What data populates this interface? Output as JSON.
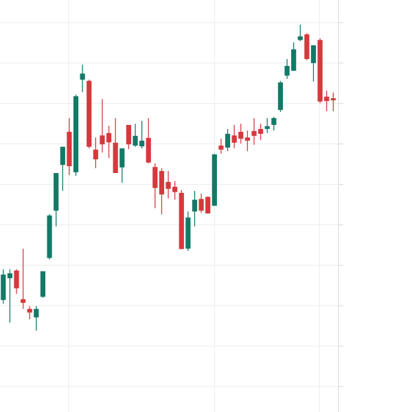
{
  "chart_data": {
    "type": "candlestick",
    "x": [
      0,
      1,
      2,
      3,
      4,
      5,
      6,
      7,
      8,
      9,
      10,
      11,
      12,
      13,
      14,
      15,
      16,
      17,
      18,
      19,
      20,
      21,
      22,
      23,
      24,
      25,
      26,
      27,
      28,
      29,
      30,
      31,
      32,
      33,
      34,
      35,
      36,
      37,
      38,
      39,
      40,
      41,
      42,
      43,
      44,
      45,
      46,
      47,
      48,
      49,
      50
    ],
    "open": [
      21.4,
      26.8,
      28.7,
      21.6,
      19.2,
      17.1,
      22.2,
      31.8,
      43.5,
      54.8,
      63.0,
      53.0,
      75.9,
      75.6,
      58.6,
      62.1,
      62.7,
      60.3,
      54.2,
      64.7,
      59.6,
      59.4,
      61.5,
      54.3,
      53.3,
      50.6,
      49.4,
      47.9,
      34.1,
      43.3,
      46.4,
      46.9,
      44.7,
      59.6,
      59.1,
      62.1,
      63.0,
      61.6,
      63.2,
      63.7,
      63.7,
      64.7,
      68.4,
      76.9,
      78.1,
      85.7,
      87.1,
      80.0,
      85.7,
      71.7,
      71.3
    ],
    "high": [
      29.0,
      29.0,
      29.0,
      34.1,
      19.9,
      19.9,
      28.5,
      42.6,
      52.8,
      59.3,
      66.4,
      72.2,
      79.6,
      75.9,
      61.6,
      71.1,
      64.5,
      66.4,
      58.9,
      64.7,
      65.0,
      65.7,
      66.4,
      55.2,
      54.0,
      53.3,
      50.8,
      48.6,
      43.3,
      48.4,
      47.7,
      47.0,
      57.6,
      61.3,
      63.7,
      64.7,
      65.0,
      63.3,
      66.4,
      65.0,
      66.4,
      66.7,
      75.6,
      81.0,
      85.1,
      89.5,
      87.4,
      84.4,
      86.1,
      73.2,
      72.7
    ],
    "low": [
      20.5,
      15.8,
      22.9,
      19.2,
      16.6,
      13.8,
      21.9,
      31.4,
      39.6,
      48.4,
      52.3,
      52.1,
      72.8,
      58.9,
      54.0,
      57.9,
      56.5,
      52.8,
      50.4,
      58.7,
      59.3,
      58.9,
      55.2,
      44.1,
      42.6,
      46.5,
      46.2,
      34.0,
      33.5,
      39.6,
      43.0,
      42.8,
      44.7,
      57.6,
      58.2,
      58.9,
      60.1,
      58.2,
      59.8,
      61.0,
      62.7,
      63.3,
      67.9,
      76.1,
      78.1,
      85.4,
      80.7,
      75.4,
      70.1,
      68.1,
      68.1
    ],
    "close": [
      27.7,
      28.0,
      24.3,
      20.7,
      18.3,
      19.2,
      28.5,
      42.3,
      52.8,
      59.3,
      54.5,
      71.8,
      77.4,
      59.3,
      56.2,
      59.9,
      60.4,
      52.8,
      58.9,
      59.9,
      62.0,
      60.8,
      55.4,
      49.1,
      47.5,
      48.9,
      48.1,
      34.0,
      41.8,
      46.2,
      43.5,
      42.8,
      57.4,
      58.6,
      62.5,
      60.3,
      61.3,
      60.8,
      62.0,
      62.5,
      64.4,
      66.4,
      75.2,
      79.3,
      83.4,
      86.6,
      81.0,
      84.4,
      70.5,
      70.6,
      70.8
    ],
    "up_color": "#127a67",
    "down_color": "#d5393d",
    "xlim": [
      -0.5,
      50.8
    ],
    "xticks": [
      9.9,
      32,
      47.9
    ],
    "ylim": [
      -6.3,
      95.6
    ],
    "yticks": [
      0,
      10,
      20,
      30,
      40,
      50,
      60,
      70,
      80,
      90
    ],
    "grid": true
  }
}
